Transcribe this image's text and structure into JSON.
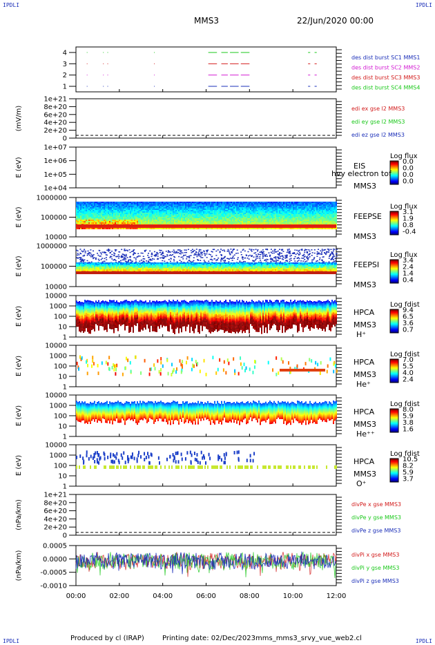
{
  "corners": {
    "tl": "IPDLI",
    "tr": "IPDLI",
    "bl": "IPDLI",
    "br": "IPDLI"
  },
  "header": {
    "title": "MMS3",
    "date": "22/Jun/2020 00:00"
  },
  "footer": {
    "producer": "Produced by cl (IRAP)",
    "printing": "Printing date: 02/Dec/2023",
    "file": "mms_mms3_srvy_vue_web2.cl"
  },
  "colors": {
    "mms1": "#1a2eb8",
    "mms2": "#d21ad2",
    "mms3": "#d21a1a",
    "mms4": "#1ac81a"
  },
  "chart_data": [
    {
      "id": "burst",
      "type": "scatter",
      "ylabel": "",
      "yticks": [
        "1",
        "2",
        "3",
        "4"
      ],
      "series": [
        {
          "name": "des dist burst SC1 MMS1",
          "y": 4,
          "color": "#1ac81a",
          "segments": [
            [
              0.5,
              0.53
            ],
            [
              1.25,
              1.28
            ],
            [
              1.45,
              1.48
            ],
            [
              3.6,
              3.63
            ],
            [
              6.1,
              6.5
            ],
            [
              6.7,
              7.0
            ],
            [
              7.1,
              7.5
            ],
            [
              7.6,
              8.0
            ],
            [
              10.7,
              10.8
            ],
            [
              11.0,
              11.1
            ]
          ]
        },
        {
          "name": "des dist burst SC2 MMS2",
          "y": 3,
          "color": "#d21a1a",
          "segments": [
            [
              0.5,
              0.53
            ],
            [
              1.25,
              1.28
            ],
            [
              1.45,
              1.48
            ],
            [
              3.6,
              3.63
            ],
            [
              6.1,
              6.5
            ],
            [
              6.7,
              7.0
            ],
            [
              7.1,
              7.5
            ],
            [
              7.6,
              8.0
            ],
            [
              10.7,
              10.8
            ],
            [
              11.0,
              11.1
            ]
          ]
        },
        {
          "name": "des dist burst SC3 MMS3",
          "y": 2,
          "color": "#d21ad2",
          "segments": [
            [
              0.5,
              0.53
            ],
            [
              1.25,
              1.28
            ],
            [
              1.45,
              1.48
            ],
            [
              3.6,
              3.63
            ],
            [
              6.1,
              6.5
            ],
            [
              6.7,
              7.0
            ],
            [
              7.1,
              7.5
            ],
            [
              7.6,
              8.0
            ],
            [
              10.7,
              10.8
            ],
            [
              11.0,
              11.1
            ]
          ]
        },
        {
          "name": "des dist burst SC4 MMS4",
          "y": 1,
          "color": "#1a2eb8",
          "segments": [
            [
              0.5,
              0.53
            ],
            [
              1.25,
              1.28
            ],
            [
              1.45,
              1.48
            ],
            [
              3.6,
              3.63
            ],
            [
              6.1,
              6.5
            ],
            [
              6.7,
              7.0
            ],
            [
              7.1,
              7.5
            ],
            [
              7.6,
              8.0
            ],
            [
              10.7,
              10.8
            ],
            [
              11.0,
              11.1
            ]
          ]
        }
      ],
      "legend": [
        {
          "text": "des dist burst SC1 MMS1",
          "color": "#1a2eb8"
        },
        {
          "text": "des dist burst SC2 MMS2",
          "color": "#d21ad2"
        },
        {
          "text": "des dist burst SC3 MMS3",
          "color": "#d21a1a"
        },
        {
          "text": "des dist burst SC4 MMS4",
          "color": "#1ac81a"
        }
      ]
    },
    {
      "id": "edi",
      "type": "line",
      "ylabel": "(mV/m)",
      "yticks": [
        "1e+21",
        "8e+20",
        "6e+20",
        "4e+20",
        "2e+20",
        "0"
      ],
      "legend": [
        {
          "text": "edi ex gse l2 MMS3",
          "color": "#d21a1a"
        },
        {
          "text": "edi ey gse l2 MMS3",
          "color": "#1ac81a"
        },
        {
          "text": "edi ez gse l2 MMS3",
          "color": "#1a2eb8"
        }
      ]
    },
    {
      "id": "eis",
      "type": "heatmap",
      "ylabel": "E (eV)",
      "yticks": [
        "1e+07",
        "1e+06",
        "1e+05",
        "1e+04"
      ],
      "labels": [
        "EIS",
        "MMS3"
      ],
      "overlay": "hvy electron tof",
      "cbar_title": "Log flux",
      "cbar_ticks": [
        "0.0",
        "0.0",
        "0.0",
        "0.0"
      ]
    },
    {
      "id": "feepse",
      "type": "heatmap",
      "ylabel": "E (eV)",
      "yticks": [
        "1000000",
        "100000",
        "10000"
      ],
      "labels": [
        "FEEPSE",
        "MMS3"
      ],
      "cbar_title": "Log flux",
      "cbar_ticks": [
        "3.1",
        "1.9",
        "0.8",
        "-0.4"
      ]
    },
    {
      "id": "feepsi",
      "type": "heatmap",
      "ylabel": "E (eV)",
      "yticks": [
        "1000000",
        "100000",
        "10000"
      ],
      "labels": [
        "FEEPSI",
        "MMS3"
      ],
      "cbar_title": "Log flux",
      "cbar_ticks": [
        "3.4",
        "2.4",
        "1.4",
        "0.4"
      ]
    },
    {
      "id": "hpca_h",
      "type": "heatmap",
      "ylabel": "E (eV)",
      "yticks": [
        "10000",
        "1000",
        "100",
        "10",
        "1"
      ],
      "labels": [
        "HPCA",
        "MMS3",
        "H⁺"
      ],
      "cbar_title": "Log fdist",
      "cbar_ticks": [
        "9.4",
        "6.5",
        "3.6",
        "0.7"
      ]
    },
    {
      "id": "hpca_he",
      "type": "heatmap",
      "ylabel": "E (eV)",
      "yticks": [
        "10000",
        "1000",
        "100",
        "10",
        "1"
      ],
      "labels": [
        "HPCA",
        "MMS3",
        "He⁺"
      ],
      "cbar_title": "Log fdist",
      "cbar_ticks": [
        "7.0",
        "5.5",
        "4.0",
        "2.4"
      ]
    },
    {
      "id": "hpca_he2",
      "type": "heatmap",
      "ylabel": "E (eV)",
      "yticks": [
        "10000",
        "1000",
        "100",
        "10",
        "1"
      ],
      "labels": [
        "HPCA",
        "MMS3",
        "He⁺⁺"
      ],
      "cbar_title": "Log fdist",
      "cbar_ticks": [
        "8.0",
        "5.9",
        "3.8",
        "1.6"
      ]
    },
    {
      "id": "hpca_o",
      "type": "heatmap",
      "ylabel": "E (eV)",
      "yticks": [
        "10000",
        "1000",
        "100",
        "10",
        "1"
      ],
      "labels": [
        "HPCA",
        "MMS3",
        "O⁺"
      ],
      "cbar_title": "Log fdist",
      "cbar_ticks": [
        "10.5",
        "8.2",
        "5.9",
        "3.7"
      ]
    },
    {
      "id": "divpe",
      "type": "line",
      "ylabel": "(nPa/km)",
      "yticks": [
        "1e+21",
        "8e+20",
        "6e+20",
        "4e+20",
        "2e+20",
        "0"
      ],
      "legend": [
        {
          "text": "divPe x gse MMS3",
          "color": "#d21a1a"
        },
        {
          "text": "divPe y gse MMS3",
          "color": "#1ac81a"
        },
        {
          "text": "divPe z gse MMS3",
          "color": "#1a2eb8"
        }
      ]
    },
    {
      "id": "divpi",
      "type": "line",
      "ylabel": "(nPa/km)",
      "yticks": [
        "0.0005",
        "0.0000",
        "-0.0005",
        "-0.0010"
      ],
      "ylim": [
        -0.0011,
        0.0006
      ],
      "legend": [
        {
          "text": "divPi x gse MMS3",
          "color": "#d21a1a"
        },
        {
          "text": "divPi y gse MMS3",
          "color": "#1ac81a"
        },
        {
          "text": "divPi z gse MMS3",
          "color": "#1a2eb8"
        }
      ]
    }
  ],
  "xaxis": {
    "ticks": [
      "00:00",
      "02:00",
      "04:00",
      "06:00",
      "08:00",
      "10:00",
      "12:00"
    ],
    "range": [
      0,
      12
    ]
  }
}
